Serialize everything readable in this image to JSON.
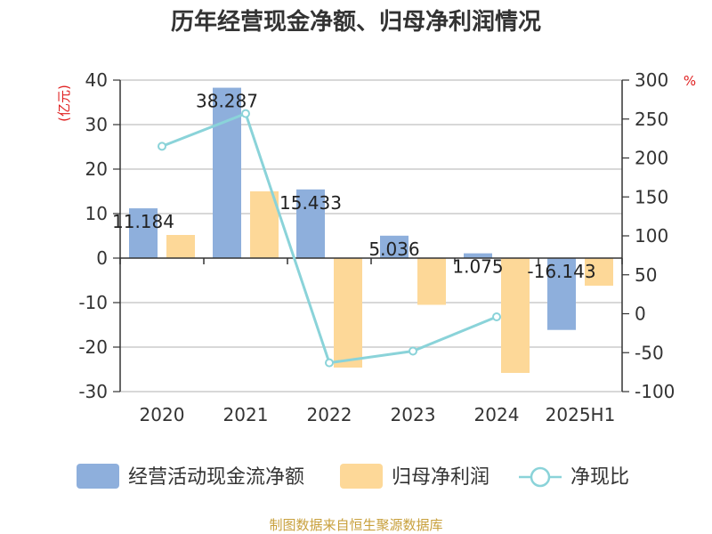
{
  "chart_data": {
    "type": "bar",
    "title": "历年经营现金净额、归母净利润情况",
    "categories": [
      "2020",
      "2021",
      "2022",
      "2023",
      "2024",
      "2025H1"
    ],
    "series": [
      {
        "name": "经营活动现金流净额",
        "type": "bar",
        "axis": "left",
        "color": "#8eafdc",
        "values": [
          11.184,
          38.287,
          15.433,
          5.036,
          1.075,
          -16.143
        ]
      },
      {
        "name": "归母净利润",
        "type": "bar",
        "axis": "left",
        "color": "#fdd898",
        "values": [
          5.2,
          15.0,
          -24.6,
          -10.5,
          -25.8,
          -6.2
        ]
      },
      {
        "name": "净现比",
        "type": "line",
        "axis": "right",
        "color": "#8ad3d9",
        "values": [
          215,
          257,
          -63,
          -48,
          -4,
          null
        ]
      }
    ],
    "data_labels": [
      "11.184",
      "38.287",
      "15.433",
      "5.036",
      "1.075",
      "-16.143"
    ],
    "left_axis": {
      "unit": "(亿元)",
      "ylim": [
        -30,
        40
      ],
      "ticks": [
        "40",
        "30",
        "20",
        "10",
        "0",
        "-10",
        "-20",
        "-30"
      ]
    },
    "right_axis": {
      "unit": "%",
      "ylim": [
        -100,
        300
      ],
      "ticks": [
        "300",
        "250",
        "200",
        "150",
        "100",
        "50",
        "0",
        "-50",
        "-100"
      ]
    },
    "grid": true,
    "legend_position": "bottom",
    "source": "制图数据来自恒生聚源数据库"
  }
}
